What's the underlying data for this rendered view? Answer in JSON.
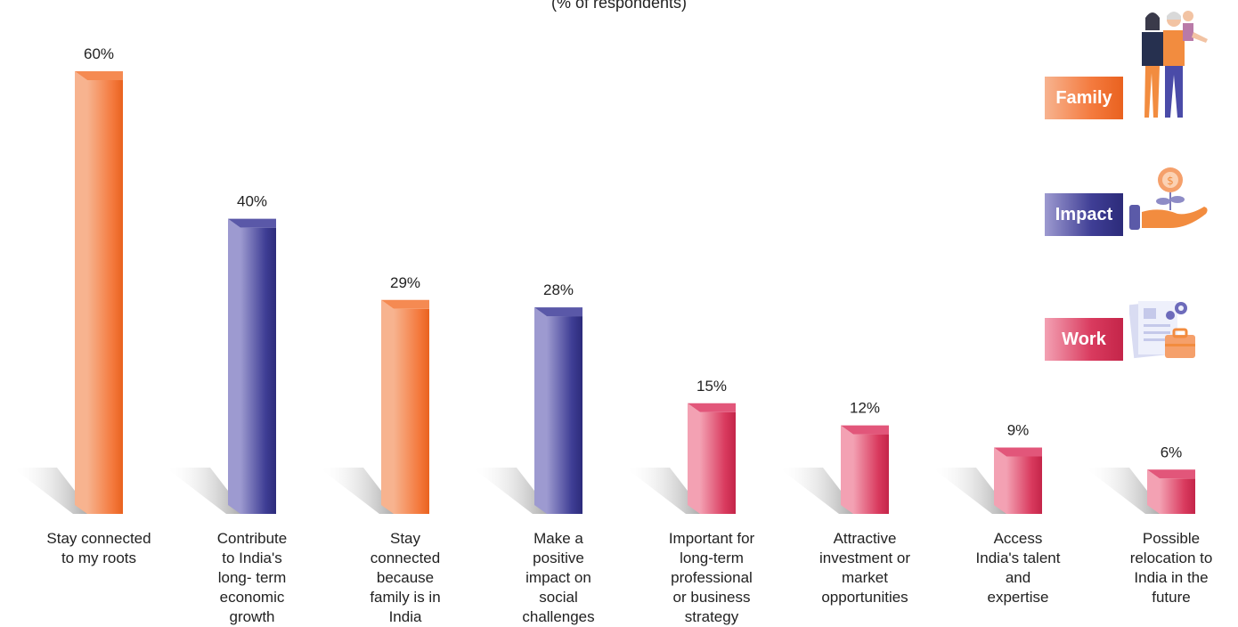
{
  "chart_data": {
    "type": "bar",
    "subtitle": "(% of respondents)",
    "categories": [
      "Stay connected to my roots",
      "Contribute to India's long- term economic growth",
      "Stay connected because family is in India",
      "Make a positive impact on social challenges",
      "Important for long-term professional or business strategy",
      "Attractive investment or market opportunities",
      "Access India's talent and expertise",
      "Possible relocation to India in the future"
    ],
    "category_lines": [
      [
        "Stay connected",
        "to my roots"
      ],
      [
        "Contribute",
        "to India's",
        "long- term",
        "economic",
        "growth"
      ],
      [
        "Stay",
        "connected",
        "because",
        "family is in",
        "India"
      ],
      [
        "Make a",
        "positive",
        "impact on",
        "social",
        "challenges"
      ],
      [
        "Important for",
        "long-term",
        "professional",
        "or business",
        "strategy"
      ],
      [
        "Attractive",
        "investment or",
        "market",
        "opportunities"
      ],
      [
        "Access",
        "India's talent",
        "and",
        "expertise"
      ],
      [
        "Possible",
        "relocation to",
        "India in the",
        "future"
      ]
    ],
    "values": [
      60,
      40,
      29,
      28,
      15,
      12,
      9,
      6
    ],
    "value_labels": [
      "60%",
      "40%",
      "29%",
      "28%",
      "15%",
      "12%",
      "9%",
      "6%"
    ],
    "bar_group": [
      "Family",
      "Impact",
      "Family",
      "Impact",
      "Work",
      "Work",
      "Work",
      "Work"
    ],
    "ylim": [
      0,
      60
    ],
    "grid": false,
    "legend_placement": "right",
    "legend": [
      {
        "name": "Family",
        "icon": "family-illustration-icon"
      },
      {
        "name": "Impact",
        "icon": "money-plant-hand-icon"
      },
      {
        "name": "Work",
        "icon": "documents-briefcase-icon"
      }
    ]
  },
  "colors": {
    "Family": {
      "light": "#f7b38f",
      "mid": "#f47a3e",
      "dark": "#e9621f",
      "top": "#f58a52"
    },
    "Impact": {
      "light": "#9d9ad0",
      "mid": "#3f3e95",
      "dark": "#2c2b7a",
      "top": "#5a58a8"
    },
    "Work": {
      "light": "#f3a1b3",
      "mid": "#d93a5e",
      "dark": "#c42549",
      "top": "#e2567a"
    }
  }
}
